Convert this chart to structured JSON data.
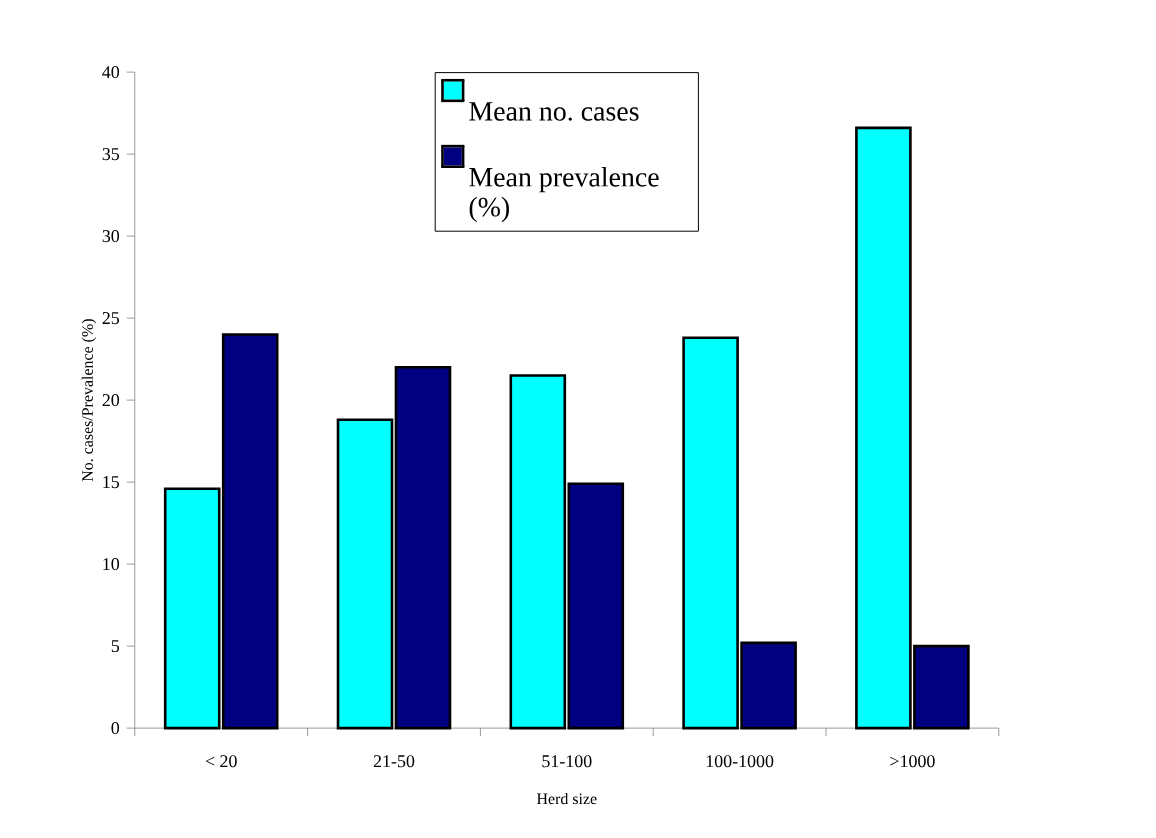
{
  "chart_data": {
    "type": "bar",
    "xlabel": "Herd size",
    "ylabel": "No. cases/Prevalence (%)",
    "categories": [
      "< 20",
      "21-50",
      "51-100",
      "100-1000",
      ">1000"
    ],
    "series": [
      {
        "name": "Mean no. cases",
        "color": "#00ffff",
        "values": [
          14.6,
          18.8,
          21.5,
          23.8,
          36.6
        ]
      },
      {
        "name": "Mean prevalence (%)",
        "color": "#000080",
        "values": [
          24.0,
          22.0,
          14.9,
          5.2,
          5.0
        ]
      }
    ],
    "ylim": [
      0,
      40
    ],
    "yticks": [
      0,
      5,
      10,
      15,
      20,
      25,
      30,
      35,
      40
    ],
    "grid": false,
    "legend": "top"
  }
}
